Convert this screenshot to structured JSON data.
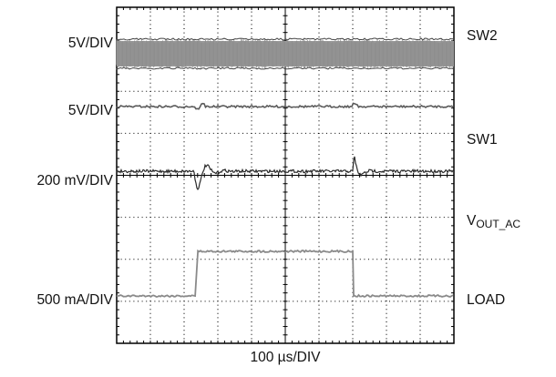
{
  "chart_data": {
    "type": "line",
    "title": "",
    "xlabel": "100 µs/DIV",
    "grid": true,
    "divisions": {
      "x": 10,
      "y": 8
    },
    "time_per_div_us": 100,
    "events": {
      "load_step_on_div": 2.3,
      "load_step_off_div": 7.0
    },
    "channels": [
      {
        "name": "SW2",
        "scale": "5V/DIV"
      },
      {
        "name": "SW1",
        "scale": "5V/DIV"
      },
      {
        "name": "VOUT_AC",
        "name_base": "V",
        "name_sub": "OUT_AC",
        "scale": "200 mV/DIV"
      },
      {
        "name": "LOAD",
        "scale": "500 mA/DIV"
      }
    ],
    "colors": {
      "trace_dark": "#2a2a2a",
      "trace_gray": "#8a8a8a",
      "grid": "#000000"
    }
  }
}
